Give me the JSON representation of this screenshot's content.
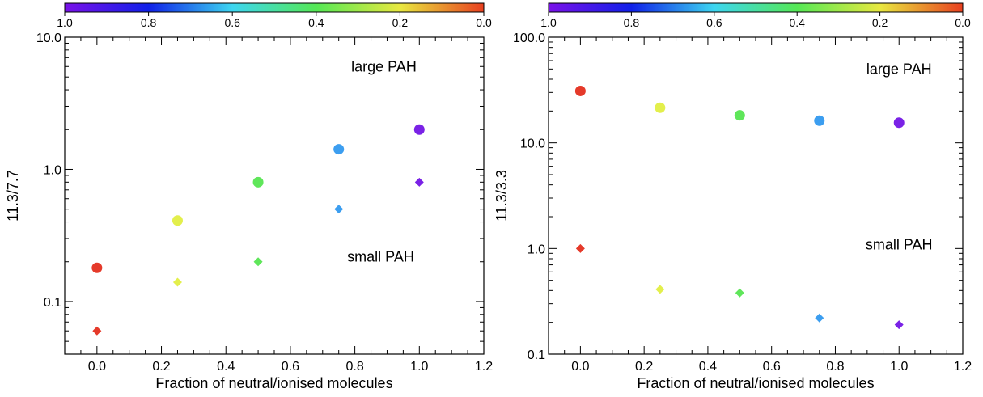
{
  "chart_data": [
    {
      "type": "scatter",
      "title": "",
      "xlabel": "Fraction of neutral/ionised molecules",
      "ylabel": "11.3/7.7",
      "xlim": [
        -0.1,
        1.2
      ],
      "ylim": [
        0.04,
        10.0
      ],
      "yscale": "log",
      "grid": false,
      "x_ticks": [
        "0.0",
        "0.2",
        "0.4",
        "0.6",
        "0.8",
        "1.0",
        "1.2"
      ],
      "y_ticks": [
        {
          "value": 0.1,
          "label": "0.1"
        },
        {
          "value": 1.0,
          "label": "1.0"
        },
        {
          "value": 10.0,
          "label": "10.0"
        }
      ],
      "colorbar": {
        "labels": [
          "1.0",
          "0.8",
          "0.6",
          "0.4",
          "0.2",
          "0.0"
        ],
        "colors": [
          "#7a12e8",
          "#1020e8",
          "#3dd6f0",
          "#55e855",
          "#e8e840",
          "#e84020"
        ]
      },
      "series": [
        {
          "marker": "circle",
          "points": [
            {
              "x": 0.0,
              "y": 0.18,
              "color": "#e53a2a"
            },
            {
              "x": 0.25,
              "y": 0.41,
              "color": "#e3ef4c"
            },
            {
              "x": 0.5,
              "y": 0.8,
              "color": "#5fe65a"
            },
            {
              "x": 0.75,
              "y": 1.42,
              "color": "#3c9ef0"
            },
            {
              "x": 1.0,
              "y": 2.0,
              "color": "#7a22e6"
            }
          ]
        },
        {
          "marker": "diamond",
          "points": [
            {
              "x": 0.0,
              "y": 0.06,
              "color": "#e53a2a"
            },
            {
              "x": 0.25,
              "y": 0.14,
              "color": "#e3ef4c"
            },
            {
              "x": 0.5,
              "y": 0.2,
              "color": "#5fe65a"
            },
            {
              "x": 0.75,
              "y": 0.5,
              "color": "#3c9ef0"
            },
            {
              "x": 1.0,
              "y": 0.8,
              "color": "#7a22e6"
            }
          ]
        }
      ],
      "annotations": [
        {
          "text": "large PAH",
          "x": 0.89,
          "y": 5.5
        },
        {
          "text": "small PAH",
          "x": 0.88,
          "y": 0.2
        }
      ]
    },
    {
      "type": "scatter",
      "title": "",
      "xlabel": "Fraction of neutral/ionised molecules",
      "ylabel": "11.3/3.3",
      "xlim": [
        -0.1,
        1.2
      ],
      "ylim": [
        0.1,
        100.0
      ],
      "yscale": "log",
      "grid": false,
      "x_ticks": [
        "0.0",
        "0.2",
        "0.4",
        "0.6",
        "0.8",
        "1.0",
        "1.2"
      ],
      "y_ticks": [
        {
          "value": 0.1,
          "label": "0.1"
        },
        {
          "value": 1.0,
          "label": "1.0"
        },
        {
          "value": 10.0,
          "label": "10.0"
        },
        {
          "value": 100.0,
          "label": "100.0"
        }
      ],
      "colorbar": {
        "labels": [
          "1.0",
          "0.8",
          "0.6",
          "0.4",
          "0.2",
          "0.0"
        ],
        "colors": [
          "#7a12e8",
          "#1020e8",
          "#3dd6f0",
          "#55e855",
          "#e8e840",
          "#e84020"
        ]
      },
      "series": [
        {
          "marker": "circle",
          "points": [
            {
              "x": 0.0,
              "y": 31.0,
              "color": "#e53a2a"
            },
            {
              "x": 0.25,
              "y": 21.5,
              "color": "#e3ef4c"
            },
            {
              "x": 0.5,
              "y": 18.2,
              "color": "#5fe65a"
            },
            {
              "x": 0.75,
              "y": 16.2,
              "color": "#3c9ef0"
            },
            {
              "x": 1.0,
              "y": 15.5,
              "color": "#7a22e6"
            }
          ]
        },
        {
          "marker": "diamond",
          "points": [
            {
              "x": 0.0,
              "y": 1.0,
              "color": "#e53a2a"
            },
            {
              "x": 0.25,
              "y": 0.41,
              "color": "#e3ef4c"
            },
            {
              "x": 0.5,
              "y": 0.38,
              "color": "#5fe65a"
            },
            {
              "x": 0.75,
              "y": 0.22,
              "color": "#3c9ef0"
            },
            {
              "x": 1.0,
              "y": 0.19,
              "color": "#7a22e6"
            }
          ]
        }
      ],
      "annotations": [
        {
          "text": "large PAH",
          "x": 1.0,
          "y": 45.0
        },
        {
          "text": "small PAH",
          "x": 1.0,
          "y": 0.98
        }
      ]
    }
  ]
}
